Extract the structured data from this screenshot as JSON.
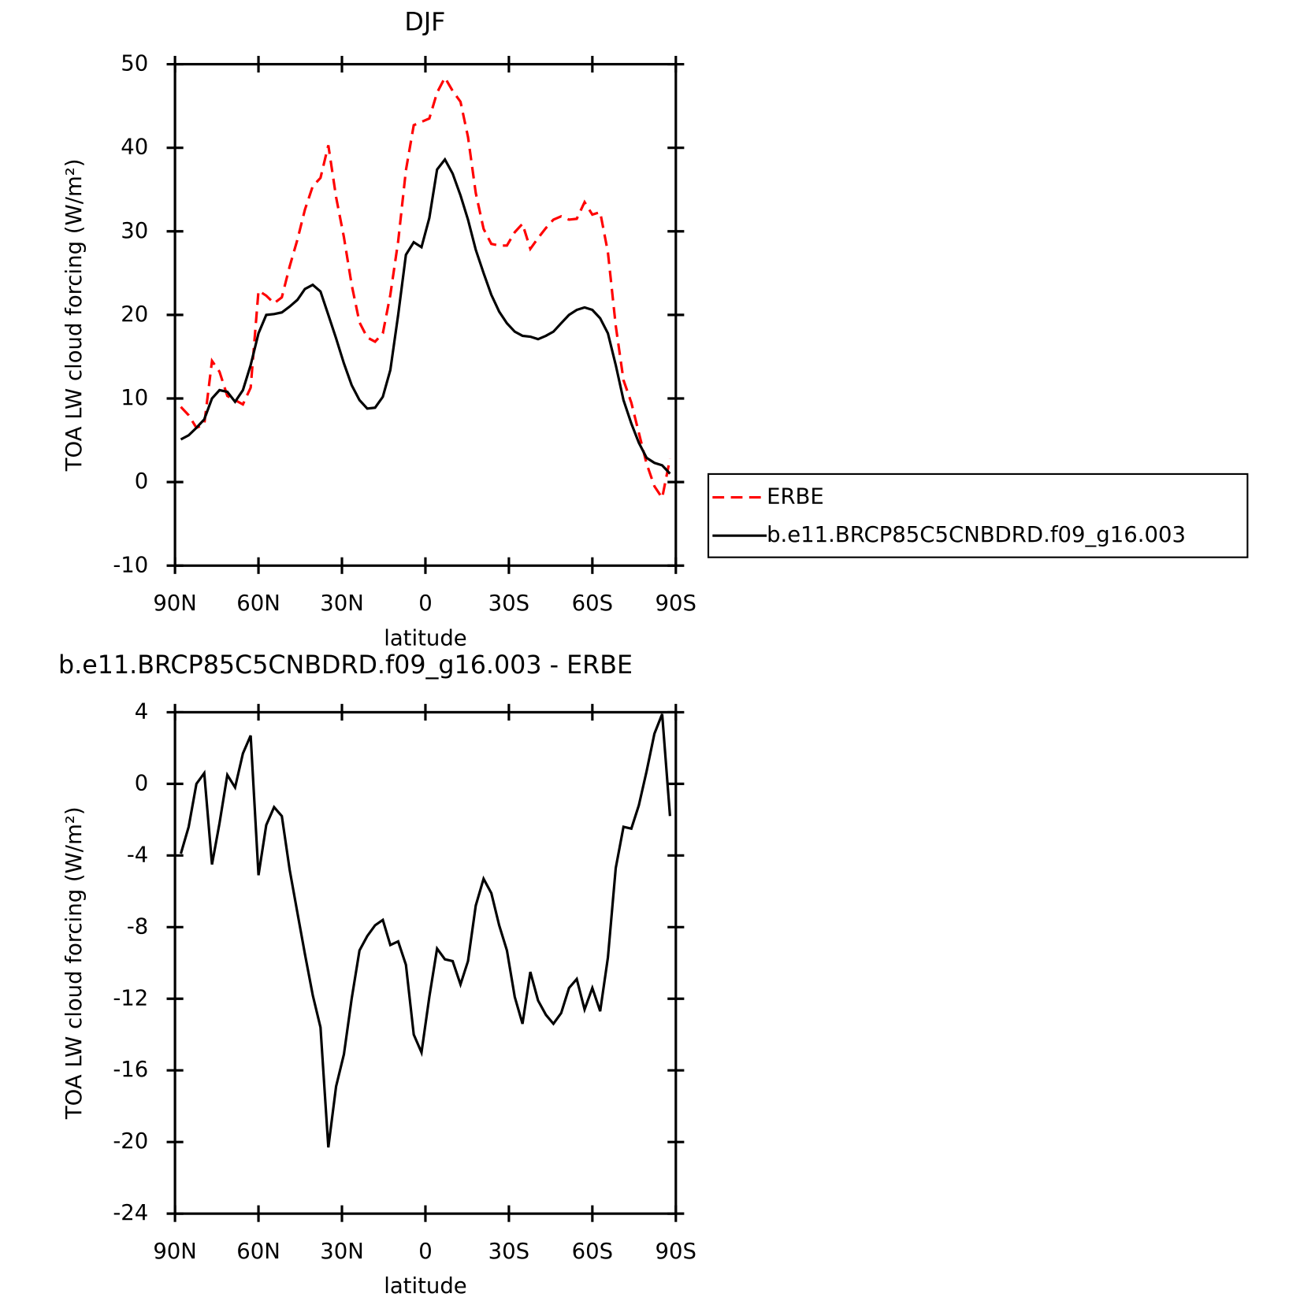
{
  "chart_data": [
    {
      "type": "line",
      "title": "DJF",
      "xlabel": "latitude",
      "ylabel": "TOA LW cloud forcing (W/m²)",
      "x": [
        87.9,
        85.1,
        82.3,
        79.5,
        76.7,
        74.0,
        71.2,
        68.4,
        65.6,
        62.8,
        60.0,
        57.2,
        54.4,
        51.6,
        48.8,
        46.0,
        43.3,
        40.5,
        37.7,
        34.9,
        32.1,
        29.3,
        26.5,
        23.7,
        20.9,
        18.1,
        15.3,
        12.6,
        9.8,
        7.0,
        4.2,
        1.4,
        -1.4,
        -4.2,
        -7.0,
        -9.8,
        -12.6,
        -15.3,
        -18.1,
        -20.9,
        -23.7,
        -26.5,
        -29.3,
        -32.1,
        -34.9,
        -37.7,
        -40.5,
        -43.3,
        -46.0,
        -48.8,
        -51.6,
        -54.4,
        -57.2,
        -60.0,
        -62.8,
        -65.6,
        -68.4,
        -71.2,
        -74.0,
        -76.7,
        -79.5,
        -82.3,
        -85.1,
        -87.9
      ],
      "series": [
        {
          "name": "ERBE",
          "color": "#ff0000",
          "style": "dashed",
          "values": [
            9.0,
            8.0,
            6.5,
            6.9,
            14.5,
            13.2,
            10.3,
            9.8,
            9.3,
            11.3,
            22.9,
            22.3,
            21.4,
            22.1,
            25.8,
            29.0,
            32.6,
            35.4,
            36.4,
            40.3,
            34.1,
            29.3,
            23.6,
            19.1,
            17.3,
            16.8,
            17.8,
            22.4,
            28.8,
            37.3,
            42.7,
            43.1,
            43.5,
            46.6,
            48.4,
            46.8,
            45.5,
            41.3,
            34.6,
            30.3,
            28.5,
            28.3,
            28.3,
            29.9,
            30.9,
            27.9,
            29.2,
            30.4,
            31.4,
            31.8,
            31.4,
            31.5,
            33.5,
            32.0,
            32.3,
            27.5,
            18.7,
            12.2,
            9.5,
            5.9,
            2.2,
            -0.5,
            -1.9,
            2.8
          ]
        },
        {
          "name": "b.e11.BRCP85C5CNBDRD.f09_g16.003",
          "color": "#000000",
          "style": "solid",
          "values": [
            5.1,
            5.6,
            6.5,
            7.5,
            10.0,
            11.0,
            10.8,
            9.6,
            11.0,
            14.0,
            17.8,
            20.0,
            20.1,
            20.3,
            21.0,
            21.8,
            23.1,
            23.6,
            22.8,
            20.0,
            17.2,
            14.2,
            11.6,
            9.8,
            8.8,
            8.9,
            10.2,
            13.4,
            20.0,
            27.2,
            28.7,
            28.1,
            31.6,
            37.4,
            38.6,
            36.9,
            34.3,
            31.4,
            27.8,
            25.0,
            22.4,
            20.4,
            19.0,
            18.0,
            17.5,
            17.4,
            17.1,
            17.5,
            18.0,
            19.0,
            20.0,
            20.6,
            20.9,
            20.6,
            19.6,
            17.8,
            14.0,
            9.8,
            7.0,
            4.7,
            2.9,
            2.3,
            2.0,
            1.0
          ]
        }
      ],
      "xlim": [
        90,
        -90
      ],
      "xticks": [
        {
          "value": 90,
          "label": "90N"
        },
        {
          "value": 60,
          "label": "60N"
        },
        {
          "value": 30,
          "label": "30N"
        },
        0,
        {
          "value": -30,
          "label": "30S"
        },
        {
          "value": -60,
          "label": "60S"
        },
        {
          "value": -90,
          "label": "90S"
        }
      ],
      "ylim": [
        -10,
        50
      ],
      "yticks": [
        -10,
        0,
        10,
        20,
        30,
        40,
        50
      ],
      "legend": "outside-right"
    },
    {
      "type": "line",
      "title": "b.e11.BRCP85C5CNBDRD.f09_g16.003 - ERBE",
      "xlabel": "latitude",
      "ylabel": "TOA LW cloud forcing (W/m²)",
      "x": [
        87.9,
        85.1,
        82.3,
        79.5,
        76.7,
        74.0,
        71.2,
        68.4,
        65.6,
        62.8,
        60.0,
        57.2,
        54.4,
        51.6,
        48.8,
        46.0,
        43.3,
        40.5,
        37.7,
        34.9,
        32.1,
        29.3,
        26.5,
        23.7,
        20.9,
        18.1,
        15.3,
        12.6,
        9.8,
        7.0,
        4.2,
        1.4,
        -1.4,
        -4.2,
        -7.0,
        -9.8,
        -12.6,
        -15.3,
        -18.1,
        -20.9,
        -23.7,
        -26.5,
        -29.3,
        -32.1,
        -34.9,
        -37.7,
        -40.5,
        -43.3,
        -46.0,
        -48.8,
        -51.6,
        -54.4,
        -57.2,
        -60.0,
        -62.8,
        -65.6,
        -68.4,
        -71.2,
        -74.0,
        -76.7,
        -79.5,
        -82.3,
        -85.1,
        -87.9
      ],
      "values": [
        -3.9,
        -2.4,
        0.0,
        0.6,
        -4.5,
        -2.2,
        0.5,
        -0.2,
        1.7,
        2.7,
        -5.1,
        -2.3,
        -1.3,
        -1.8,
        -4.8,
        -7.2,
        -9.5,
        -11.8,
        -13.6,
        -20.3,
        -16.9,
        -15.1,
        -12.0,
        -9.3,
        -8.5,
        -7.9,
        -7.6,
        -9.0,
        -8.8,
        -10.1,
        -14.0,
        -15.0,
        -11.9,
        -9.2,
        -9.8,
        -9.9,
        -11.2,
        -9.9,
        -6.8,
        -5.3,
        -6.1,
        -7.9,
        -9.3,
        -11.9,
        -13.4,
        -10.5,
        -12.1,
        -12.9,
        -13.4,
        -12.8,
        -11.4,
        -10.9,
        -12.6,
        -11.4,
        -12.7,
        -9.7,
        -4.7,
        -2.4,
        -2.5,
        -1.2,
        0.7,
        2.8,
        3.9,
        -1.8
      ],
      "color": "#000000",
      "xlim": [
        90,
        -90
      ],
      "xticks": [
        {
          "value": 90,
          "label": "90N"
        },
        {
          "value": 60,
          "label": "60N"
        },
        {
          "value": 30,
          "label": "30N"
        },
        0,
        {
          "value": -30,
          "label": "30S"
        },
        {
          "value": -60,
          "label": "60S"
        },
        {
          "value": -90,
          "label": "90S"
        }
      ],
      "ylim": [
        -24,
        4
      ],
      "yticks": [
        -24,
        -20,
        -16,
        -12,
        -8,
        -4,
        0,
        4
      ]
    }
  ]
}
